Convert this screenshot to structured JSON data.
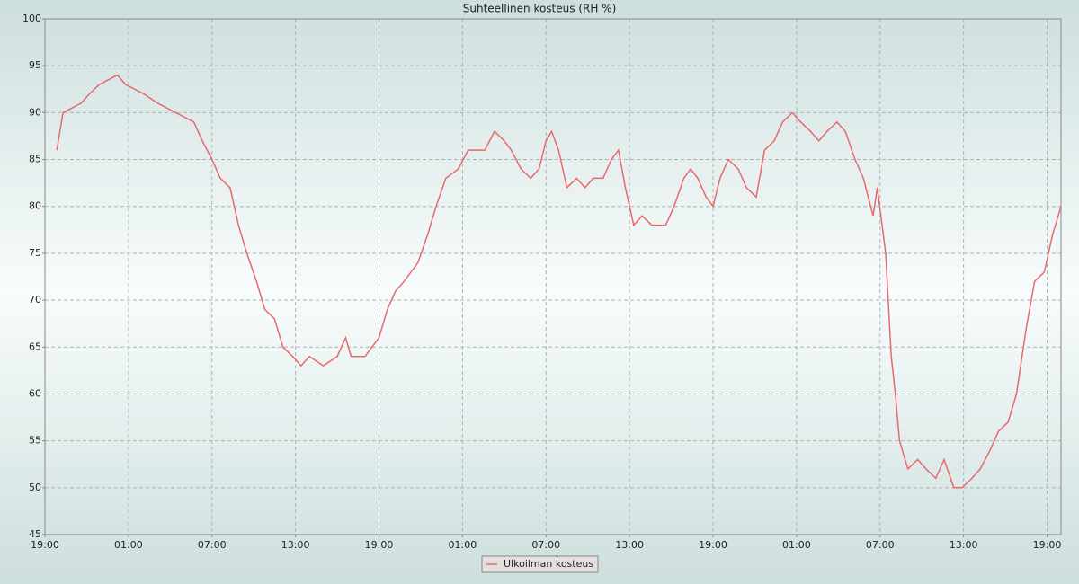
{
  "chart_data": {
    "type": "line",
    "title": "Suhteellinen kosteus (RH %)",
    "x": [
      0.85,
      1.3,
      2.6,
      3.2,
      3.9,
      5.2,
      5.8,
      7.1,
      8.1,
      9.4,
      10.7,
      11.3,
      12.0,
      12.6,
      13.3,
      13.9,
      14.5,
      15.2,
      15.8,
      16.5,
      17.1,
      17.8,
      18.4,
      19.0,
      20.0,
      21.0,
      21.6,
      22.0,
      23.0,
      24.0,
      24.6,
      25.2,
      25.8,
      26.8,
      27.5,
      28.1,
      28.8,
      29.7,
      30.4,
      31.0,
      31.6,
      32.3,
      33.0,
      33.5,
      34.2,
      34.9,
      35.5,
      36.0,
      36.4,
      36.9,
      37.5,
      38.2,
      38.8,
      39.4,
      40.1,
      40.7,
      41.2,
      41.7,
      42.3,
      42.9,
      43.6,
      44.6,
      45.2,
      45.9,
      46.4,
      46.9,
      47.5,
      48.0,
      48.5,
      49.1,
      49.8,
      50.4,
      51.1,
      51.7,
      52.4,
      53.0,
      53.7,
      54.3,
      55.0,
      55.6,
      56.2,
      56.9,
      57.5,
      58.2,
      58.8,
      59.5,
      59.8,
      60.4,
      60.8,
      61.1,
      61.4,
      62.0,
      62.7,
      63.3,
      64.0,
      64.6,
      65.3,
      65.9,
      66.6,
      67.2,
      67.9,
      68.5,
      69.2,
      69.8,
      70.5,
      71.1,
      71.8,
      72.4,
      73.0
    ],
    "series": [
      {
        "name": "Ulkoilman kosteus",
        "color": "#e8696b",
        "values": [
          86,
          90,
          91,
          92,
          93,
          94,
          93,
          92,
          91,
          90,
          89,
          87,
          85,
          83,
          82,
          78,
          75,
          72,
          69,
          68,
          65,
          64,
          63,
          64,
          63,
          64,
          66,
          64,
          64,
          66,
          69,
          71,
          72,
          74,
          77,
          80,
          83,
          84,
          86,
          86,
          86,
          88,
          87,
          86,
          84,
          83,
          84,
          87,
          88,
          86,
          82,
          83,
          82,
          83,
          83,
          85,
          86,
          82,
          78,
          79,
          78,
          78,
          80,
          83,
          84,
          83,
          81,
          80,
          83,
          85,
          84,
          82,
          81,
          86,
          87,
          89,
          90,
          89,
          88,
          87,
          88,
          89,
          88,
          85,
          83,
          79,
          82,
          75,
          64,
          60,
          55,
          52,
          53,
          52,
          51,
          53,
          50,
          50,
          51,
          52,
          54,
          56,
          57,
          60,
          67,
          72,
          73,
          77,
          80
        ]
      }
    ],
    "xlim": [
      0,
      73
    ],
    "ylim": [
      45,
      100
    ],
    "yticks": [
      45,
      50,
      55,
      60,
      65,
      70,
      75,
      80,
      85,
      90,
      95,
      100
    ],
    "xticks": [
      {
        "value": 0,
        "label": "19:00"
      },
      {
        "value": 6,
        "label": "01:00"
      },
      {
        "value": 12,
        "label": "07:00"
      },
      {
        "value": 18,
        "label": "13:00"
      },
      {
        "value": 24,
        "label": "19:00"
      },
      {
        "value": 30,
        "label": "01:00"
      },
      {
        "value": 36,
        "label": "07:00"
      },
      {
        "value": 42,
        "label": "13:00"
      },
      {
        "value": 48,
        "label": "19:00"
      },
      {
        "value": 54,
        "label": "01:00"
      },
      {
        "value": 60,
        "label": "07:00"
      },
      {
        "value": 66,
        "label": "13:00"
      },
      {
        "value": 72,
        "label": "19:00"
      }
    ],
    "grid": true
  }
}
